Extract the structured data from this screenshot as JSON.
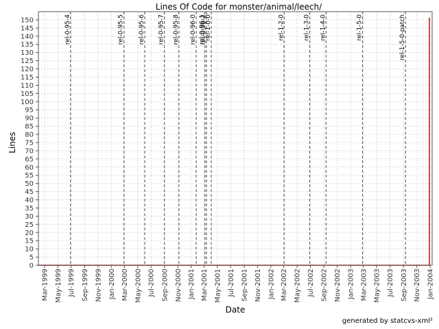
{
  "chart_data": {
    "type": "line",
    "title": "Lines Of Code for monster/animal/leech/",
    "xlabel": "Date",
    "ylabel": "Lines",
    "xlim": [
      "1999-02-01",
      "2004-01-10"
    ],
    "ylim": [
      0,
      155
    ],
    "yticks": [
      0,
      5,
      10,
      15,
      20,
      25,
      30,
      35,
      40,
      45,
      50,
      55,
      60,
      65,
      70,
      75,
      80,
      85,
      90,
      95,
      100,
      105,
      110,
      115,
      120,
      125,
      130,
      135,
      140,
      145,
      150
    ],
    "xticks": [
      {
        "label": "Mar-1999",
        "date": "1999-03-01"
      },
      {
        "label": "May-1999",
        "date": "1999-05-01"
      },
      {
        "label": "Jul-1999",
        "date": "1999-07-01"
      },
      {
        "label": "Sep-1999",
        "date": "1999-09-01"
      },
      {
        "label": "Nov-1999",
        "date": "1999-11-01"
      },
      {
        "label": "Jan-2000",
        "date": "2000-01-01"
      },
      {
        "label": "Mar-2000",
        "date": "2000-03-01"
      },
      {
        "label": "May-2000",
        "date": "2000-05-01"
      },
      {
        "label": "Jul-2000",
        "date": "2000-07-01"
      },
      {
        "label": "Sep-2000",
        "date": "2000-09-01"
      },
      {
        "label": "Nov-2000",
        "date": "2000-11-01"
      },
      {
        "label": "Jan-2001",
        "date": "2001-01-01"
      },
      {
        "label": "Mar-2001",
        "date": "2001-03-01"
      },
      {
        "label": "May-2001",
        "date": "2001-05-01"
      },
      {
        "label": "Jul-2001",
        "date": "2001-07-01"
      },
      {
        "label": "Sep-2001",
        "date": "2001-09-01"
      },
      {
        "label": "Nov-2001",
        "date": "2001-11-01"
      },
      {
        "label": "Jan-2002",
        "date": "2002-01-01"
      },
      {
        "label": "Mar-2002",
        "date": "2002-03-01"
      },
      {
        "label": "May-2002",
        "date": "2002-05-01"
      },
      {
        "label": "Jul-2002",
        "date": "2002-07-01"
      },
      {
        "label": "Sep-2002",
        "date": "2002-09-01"
      },
      {
        "label": "Nov-2002",
        "date": "2002-11-01"
      },
      {
        "label": "Jan-2003",
        "date": "2003-01-01"
      },
      {
        "label": "Mar-2003",
        "date": "2003-03-01"
      },
      {
        "label": "May-2003",
        "date": "2003-05-01"
      },
      {
        "label": "Jul-2003",
        "date": "2003-07-01"
      },
      {
        "label": "Sep-2003",
        "date": "2003-09-01"
      },
      {
        "label": "Nov-2003",
        "date": "2003-11-01"
      },
      {
        "label": "Jan-2004",
        "date": "2004-01-01"
      }
    ],
    "markers": [
      {
        "label": "rel-0-95-4",
        "date": "1999-06-28"
      },
      {
        "label": "rel-0-95-5",
        "date": "2000-02-28"
      },
      {
        "label": "rel-0-95-6",
        "date": "2000-06-02"
      },
      {
        "label": "rel-0-95-7",
        "date": "2000-08-31"
      },
      {
        "label": "rel-0-95-8",
        "date": "2000-11-06"
      },
      {
        "label": "rel-0-96-0",
        "date": "2001-01-24"
      },
      {
        "label": "rel-0-96-1",
        "date": "2001-03-05"
      },
      {
        "label": "rel-0-96-2",
        "date": "2001-03-12"
      },
      {
        "label": "rel-1-0-0",
        "date": "2001-04-03"
      },
      {
        "label": "rel-1-2-0",
        "date": "2002-03-03"
      },
      {
        "label": "rel-1-3-0",
        "date": "2002-06-28"
      },
      {
        "label": "rel-1-4-0",
        "date": "2002-09-11"
      },
      {
        "label": "rel-1-5-0",
        "date": "2003-02-25"
      },
      {
        "label": "rel-1-5-0-patch",
        "date": "2003-09-10"
      }
    ],
    "series": [
      {
        "color": "#cc0000",
        "points": [
          {
            "x": "1999-02-01",
            "y": 0
          },
          {
            "x": "2003-12-28",
            "y": 0
          },
          {
            "x": "2003-12-28",
            "y": 151
          }
        ]
      }
    ],
    "grid": true,
    "legend": "none"
  },
  "footer": "generated by statcvs-xml²"
}
